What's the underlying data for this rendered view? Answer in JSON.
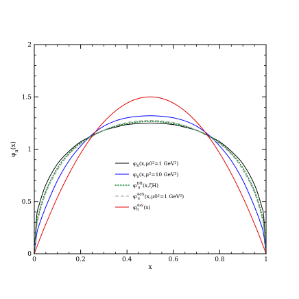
{
  "chart_data": {
    "type": "line",
    "xlabel": "x",
    "ylabel": "φπ(x)",
    "xlim": [
      0,
      1
    ],
    "ylim": [
      0,
      2
    ],
    "x_ticks": [
      "0",
      "0.2",
      "0.4",
      "0.6",
      "0.8",
      "1"
    ],
    "y_ticks": [
      "0",
      "0.5",
      "1",
      "1.5",
      "2"
    ],
    "legend_position": "center-right",
    "series": [
      {
        "name": "φπ(x,μ0²=1 GeV²)",
        "legend_base": "φ",
        "legend_sub": "π",
        "legend_tail": "(x,μ0²=1 GeV²)",
        "color": "#000000",
        "dash": "solid",
        "x": [
          0.0,
          0.01,
          0.02,
          0.05,
          0.1,
          0.15,
          0.2,
          0.25,
          0.3,
          0.35,
          0.4,
          0.45,
          0.5,
          0.55,
          0.6,
          0.65,
          0.7,
          0.75,
          0.8,
          0.85,
          0.9,
          0.95,
          0.98,
          0.99,
          1.0
        ],
        "y": [
          0.0,
          0.35,
          0.46,
          0.66,
          0.86,
          0.98,
          1.07,
          1.13,
          1.18,
          1.21,
          1.235,
          1.245,
          1.25,
          1.245,
          1.235,
          1.21,
          1.18,
          1.13,
          1.07,
          0.98,
          0.86,
          0.66,
          0.46,
          0.35,
          0.0
        ]
      },
      {
        "name": "φπ(x,μ²=10 GeV²)",
        "legend_base": "φ",
        "legend_sub": "π",
        "legend_tail": "(x,μ²=10 GeV²)",
        "color": "#0000ff",
        "dash": "solid",
        "x": [
          0.0,
          0.01,
          0.02,
          0.05,
          0.1,
          0.15,
          0.2,
          0.25,
          0.3,
          0.35,
          0.4,
          0.45,
          0.5,
          0.55,
          0.6,
          0.65,
          0.7,
          0.75,
          0.8,
          0.85,
          0.9,
          0.95,
          0.98,
          0.99,
          1.0
        ],
        "y": [
          0.0,
          0.18,
          0.27,
          0.45,
          0.7,
          0.89,
          1.03,
          1.14,
          1.22,
          1.27,
          1.3,
          1.315,
          1.32,
          1.315,
          1.3,
          1.27,
          1.22,
          1.14,
          1.03,
          0.89,
          0.7,
          0.45,
          0.27,
          0.18,
          0.0
        ]
      },
      {
        "name": "φπDB(x,ζH)",
        "legend_base": "φ",
        "legend_sub": "π",
        "legend_sup": "DB",
        "legend_tail": "(x,ζH)",
        "color": "#1f8f3a",
        "dash": "dotted",
        "x": [
          0.0,
          0.01,
          0.02,
          0.05,
          0.1,
          0.15,
          0.2,
          0.25,
          0.3,
          0.35,
          0.4,
          0.45,
          0.5,
          0.55,
          0.6,
          0.65,
          0.7,
          0.75,
          0.8,
          0.85,
          0.9,
          0.95,
          0.98,
          0.99,
          1.0
        ],
        "y": [
          0.0,
          0.28,
          0.39,
          0.6,
          0.82,
          0.96,
          1.06,
          1.13,
          1.18,
          1.22,
          1.245,
          1.26,
          1.265,
          1.26,
          1.245,
          1.22,
          1.18,
          1.13,
          1.06,
          0.96,
          0.82,
          0.6,
          0.39,
          0.28,
          0.0
        ]
      },
      {
        "name": "φπAdS(x,μ0²=1 GeV²)",
        "legend_base": "φ",
        "legend_sub": "π",
        "legend_sup": "AdS",
        "legend_tail": "(x,μ0²=1 GeV²)",
        "color": "#999999",
        "dash": "dashed",
        "x": [
          0.0,
          0.01,
          0.02,
          0.05,
          0.1,
          0.15,
          0.2,
          0.25,
          0.3,
          0.35,
          0.4,
          0.45,
          0.5,
          0.55,
          0.6,
          0.65,
          0.7,
          0.75,
          0.8,
          0.85,
          0.9,
          0.95,
          0.98,
          0.99,
          1.0
        ],
        "y": [
          0.0,
          0.25,
          0.36,
          0.58,
          0.8,
          0.95,
          1.05,
          1.12,
          1.18,
          1.225,
          1.255,
          1.27,
          1.275,
          1.27,
          1.255,
          1.225,
          1.18,
          1.12,
          1.05,
          0.95,
          0.8,
          0.58,
          0.36,
          0.25,
          0.0
        ]
      },
      {
        "name": "φπAsy(x)",
        "legend_base": "φ",
        "legend_sub": "π",
        "legend_sup": "Asy",
        "legend_tail": "(x)",
        "color": "#e00000",
        "dash": "solid",
        "x": [
          0.0,
          0.02,
          0.05,
          0.1,
          0.15,
          0.2,
          0.25,
          0.3,
          0.35,
          0.4,
          0.45,
          0.5,
          0.55,
          0.6,
          0.65,
          0.7,
          0.75,
          0.8,
          0.85,
          0.9,
          0.95,
          0.98,
          1.0
        ],
        "y": [
          0.0,
          0.118,
          0.285,
          0.54,
          0.765,
          0.96,
          1.125,
          1.26,
          1.365,
          1.44,
          1.485,
          1.5,
          1.485,
          1.44,
          1.365,
          1.26,
          1.125,
          0.96,
          0.765,
          0.54,
          0.285,
          0.118,
          0.0
        ]
      }
    ]
  }
}
